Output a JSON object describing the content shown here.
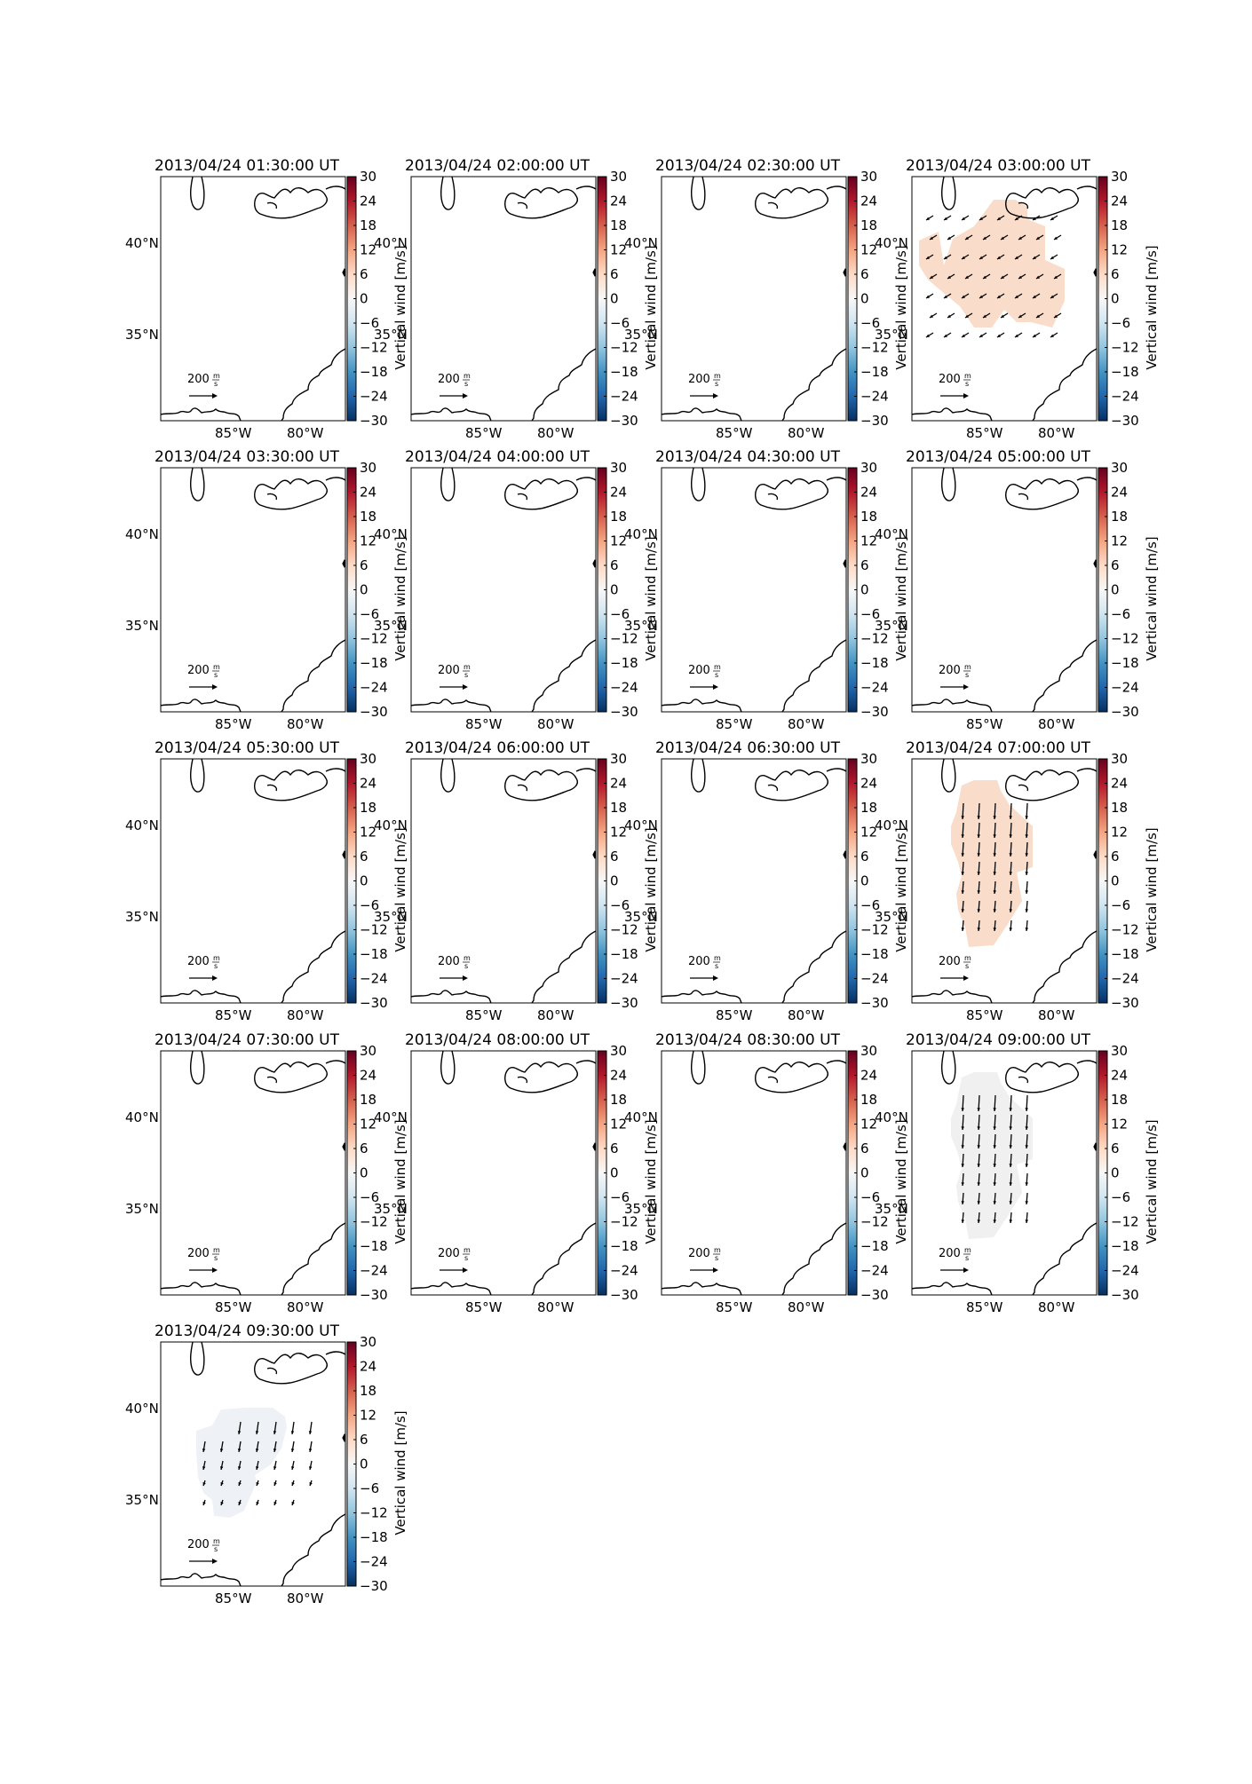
{
  "figure": {
    "colorbar_label": "Vertical wind [m/s]",
    "colorbar_ticks": [
      "30",
      "24",
      "18",
      "12",
      "6",
      "0",
      "−6",
      "−12",
      "−18",
      "−24",
      "−30"
    ],
    "colorbar_range": [
      -30,
      30
    ],
    "lat_labels": [
      "40°N",
      "35°N"
    ],
    "lon_labels": [
      "85°W",
      "80°W"
    ],
    "scale_value": "200",
    "scale_unit_num": "m",
    "scale_unit_den": "s",
    "colors": {
      "warm_fill": "#f9dcc9",
      "gray_fill": "#f0f0f0",
      "cool_fill": "#eef1f5",
      "colormap": [
        "#053061",
        "#2166ac",
        "#4393c3",
        "#92c5de",
        "#d1e5f0",
        "#f7f7f7",
        "#fddbc7",
        "#f4a582",
        "#d6604d",
        "#b2182b",
        "#67001f"
      ]
    }
  },
  "panels": [
    {
      "title": "2013/04/24 01:30:00 UT",
      "lat_at_colorbar": true,
      "wind": null
    },
    {
      "title": "2013/04/24 02:00:00 UT",
      "lat_at_colorbar": true,
      "wind": null
    },
    {
      "title": "2013/04/24 02:30:00 UT",
      "lat_at_colorbar": true,
      "wind": null
    },
    {
      "title": "2013/04/24 03:00:00 UT",
      "lat_at_colorbar": false,
      "wind": {
        "fill": "warm_fill",
        "pattern": "sw"
      }
    },
    {
      "title": "2013/04/24 03:30:00 UT",
      "lat_at_colorbar": true,
      "wind": null
    },
    {
      "title": "2013/04/24 04:00:00 UT",
      "lat_at_colorbar": true,
      "wind": null
    },
    {
      "title": "2013/04/24 04:30:00 UT",
      "lat_at_colorbar": true,
      "wind": null
    },
    {
      "title": "2013/04/24 05:00:00 UT",
      "lat_at_colorbar": false,
      "wind": null
    },
    {
      "title": "2013/04/24 05:30:00 UT",
      "lat_at_colorbar": true,
      "wind": null
    },
    {
      "title": "2013/04/24 06:00:00 UT",
      "lat_at_colorbar": true,
      "wind": null
    },
    {
      "title": "2013/04/24 06:30:00 UT",
      "lat_at_colorbar": true,
      "wind": null
    },
    {
      "title": "2013/04/24 07:00:00 UT",
      "lat_at_colorbar": false,
      "wind": {
        "fill": "warm_fill",
        "pattern": "south"
      }
    },
    {
      "title": "2013/04/24 07:30:00 UT",
      "lat_at_colorbar": true,
      "wind": null
    },
    {
      "title": "2013/04/24 08:00:00 UT",
      "lat_at_colorbar": true,
      "wind": null
    },
    {
      "title": "2013/04/24 08:30:00 UT",
      "lat_at_colorbar": true,
      "wind": null
    },
    {
      "title": "2013/04/24 09:00:00 UT",
      "lat_at_colorbar": false,
      "wind": {
        "fill": "gray_fill",
        "pattern": "south"
      }
    },
    {
      "title": "2013/04/24 09:30:00 UT",
      "lat_at_colorbar": false,
      "wind": {
        "fill": "cool_fill",
        "pattern": "ssw"
      }
    }
  ]
}
